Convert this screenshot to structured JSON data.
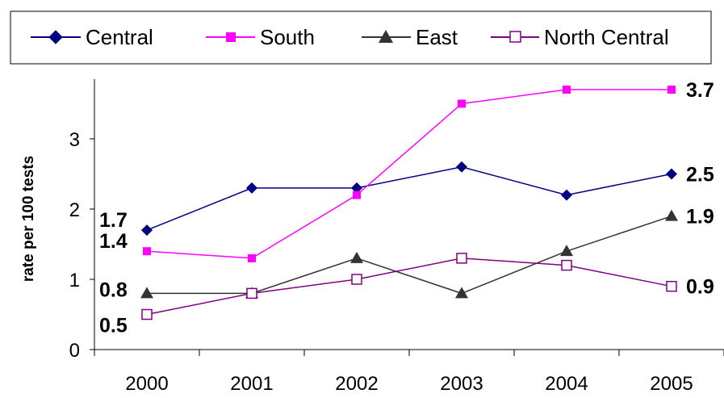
{
  "chart_data": {
    "type": "line",
    "title": "",
    "xlabel": "",
    "ylabel": "rate per 100 tests",
    "categories": [
      "2000",
      "2001",
      "2002",
      "2003",
      "2004",
      "2005"
    ],
    "ylim": [
      0,
      3.85
    ],
    "yticks": [
      "0",
      "1",
      "2",
      "3"
    ],
    "grid": false,
    "legend": "top",
    "series": [
      {
        "name": "Central",
        "color": "#000080",
        "marker": "filled-diamond",
        "values": [
          1.7,
          2.3,
          2.3,
          2.6,
          2.2,
          2.5
        ]
      },
      {
        "name": "South",
        "color": "#FF00FF",
        "marker": "filled-square",
        "values": [
          1.4,
          1.3,
          2.2,
          3.5,
          3.7,
          3.7
        ]
      },
      {
        "name": "East",
        "color": "#333333",
        "marker": "filled-triangle",
        "values": [
          0.8,
          0.8,
          1.3,
          0.8,
          1.4,
          1.9
        ]
      },
      {
        "name": "North Central",
        "color": "#800080",
        "marker": "open-square",
        "values": [
          0.5,
          0.8,
          1.0,
          1.3,
          1.2,
          0.9
        ]
      }
    ],
    "data_labels": {
      "start": [
        "1.7",
        "1.4",
        "0.8",
        "0.5"
      ],
      "end": [
        "2.5",
        "3.7",
        "1.9",
        "0.9"
      ]
    }
  }
}
